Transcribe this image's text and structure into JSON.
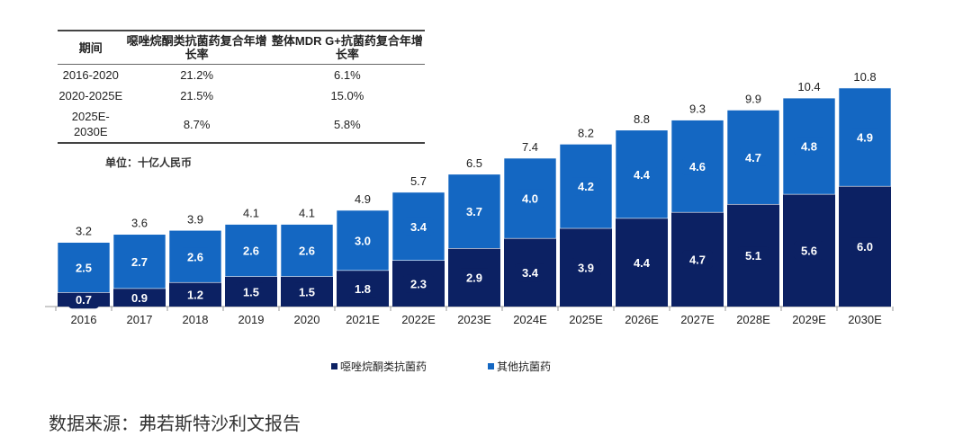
{
  "table": {
    "headers": [
      "期间",
      "噁唑烷酮类抗菌药复合年增长率",
      "整体MDR G+抗菌药复合年增长率"
    ],
    "rows": [
      [
        "2016-2020",
        "21.2%",
        "6.1%"
      ],
      [
        "2020-2025E",
        "21.5%",
        "15.0%"
      ],
      [
        "2025E-2030E",
        "8.7%",
        "5.8%"
      ]
    ]
  },
  "unit_label": "单位：十亿人民币",
  "source": "数据来源：弗若斯特沙利文报告",
  "chart_data": {
    "type": "bar",
    "stacked": true,
    "categories": [
      "2016",
      "2017",
      "2018",
      "2019",
      "2020",
      "2021E",
      "2022E",
      "2023E",
      "2024E",
      "2025E",
      "2026E",
      "2027E",
      "2028E",
      "2029E",
      "2030E"
    ],
    "series": [
      {
        "name": "噁唑烷酮类抗菌药",
        "color": "#0c2163",
        "values": [
          0.7,
          0.9,
          1.2,
          1.5,
          1.5,
          1.8,
          2.3,
          2.9,
          3.4,
          3.9,
          4.4,
          4.7,
          5.1,
          5.6,
          6.0
        ]
      },
      {
        "name": "其他抗菌药",
        "color": "#1467c2",
        "values": [
          2.5,
          2.7,
          2.6,
          2.6,
          2.6,
          3.0,
          3.4,
          3.7,
          4.0,
          4.2,
          4.4,
          4.6,
          4.7,
          4.8,
          4.9
        ]
      }
    ],
    "totals": [
      3.2,
      3.6,
      3.9,
      4.1,
      4.1,
      4.9,
      5.7,
      6.5,
      7.4,
      8.2,
      8.8,
      9.3,
      9.9,
      10.4,
      10.8
    ],
    "ylim": [
      0,
      10.8
    ],
    "legend": "bottom",
    "grid": false
  }
}
